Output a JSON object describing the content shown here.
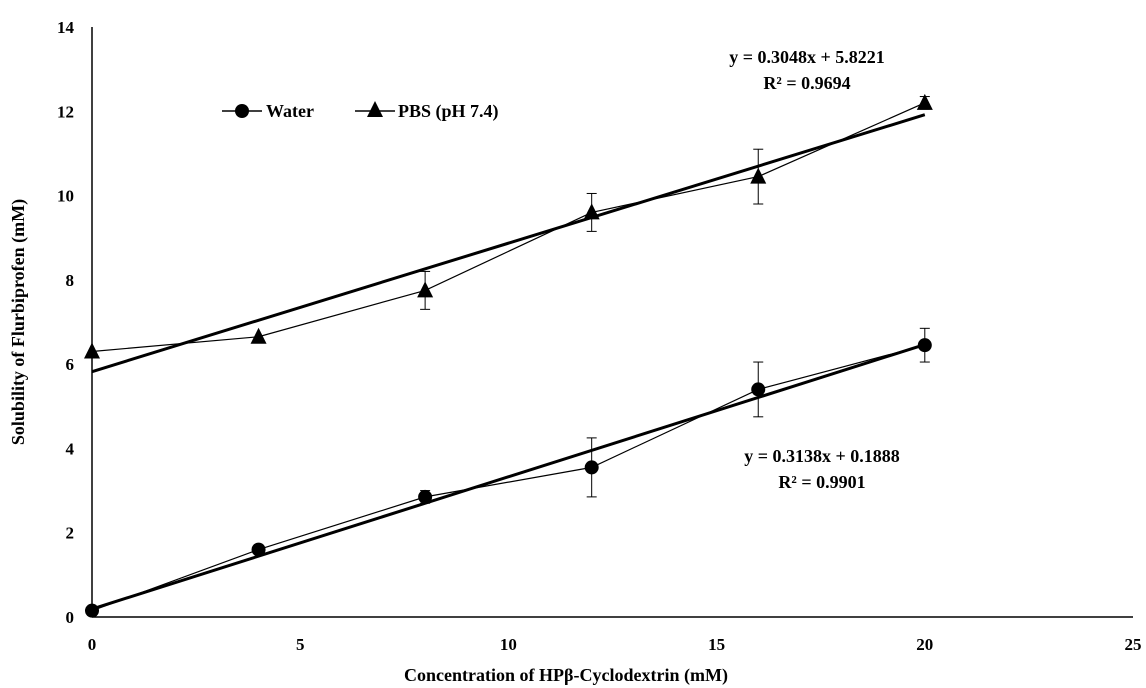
{
  "chart_data": {
    "type": "scatter",
    "title": "",
    "xlabel": "Concentration of  HPβ-Cyclodextrin (mM)",
    "ylabel": "Solubility of Flurbiprofen (mM)",
    "xlim": [
      0,
      25
    ],
    "ylim": [
      0,
      14
    ],
    "x_ticks": [
      "0",
      "5",
      "10",
      "15",
      "20",
      "25"
    ],
    "y_ticks": [
      "0",
      "2",
      "4",
      "6",
      "8",
      "10",
      "12",
      "14"
    ],
    "grid": false,
    "legend_position": "top-left",
    "series": [
      {
        "name": "Water",
        "marker": "circle",
        "x": [
          0,
          4,
          8,
          12,
          16,
          20
        ],
        "y": [
          0.15,
          1.6,
          2.85,
          3.55,
          5.4,
          6.45
        ],
        "error": [
          0.05,
          0.05,
          0.15,
          0.7,
          0.65,
          0.4
        ]
      },
      {
        "name": "PBS (pH 7.4)",
        "marker": "triangle",
        "x": [
          0,
          4,
          8,
          12,
          16,
          20
        ],
        "y": [
          6.3,
          6.65,
          7.75,
          9.6,
          10.45,
          12.2
        ],
        "error": [
          0.05,
          0.05,
          0.45,
          0.45,
          0.65,
          0.15
        ]
      }
    ],
    "trendlines": [
      {
        "series": "Water",
        "slope": 0.3138,
        "intercept": 0.1888,
        "x_range": [
          0,
          20
        ]
      },
      {
        "series": "PBS (pH 7.4)",
        "slope": 0.3048,
        "intercept": 5.8221,
        "x_range": [
          0,
          20
        ]
      }
    ],
    "annotations": [
      {
        "id": "pbs",
        "equation": "y = 0.3048x + 5.8221",
        "r2": "R² = 0.9694"
      },
      {
        "id": "water",
        "equation": "y = 0.3138x + 0.1888",
        "r2": "R² = 0.9901"
      }
    ]
  }
}
